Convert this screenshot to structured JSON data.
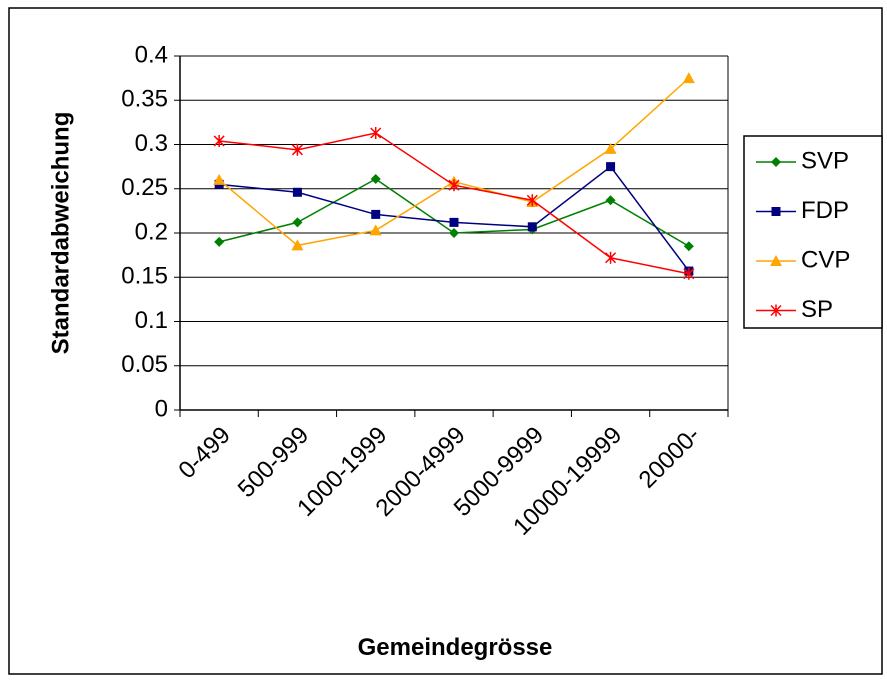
{
  "chart_data": {
    "type": "line",
    "x_label": "Gemeindegrösse",
    "y_label": "Standardabweichung",
    "categories": [
      "0-499",
      "500-999",
      "1000-1999",
      "2000-4999",
      "5000-9999",
      "10000-19999",
      "20000-"
    ],
    "series": [
      {
        "name": "SVP",
        "color": "#008000",
        "marker": "diamond",
        "values": [
          0.19,
          0.212,
          0.261,
          0.2,
          0.204,
          0.237,
          0.185
        ]
      },
      {
        "name": "FDP",
        "color": "#000080",
        "marker": "square",
        "values": [
          0.255,
          0.246,
          0.221,
          0.212,
          0.207,
          0.275,
          0.157
        ]
      },
      {
        "name": "CVP",
        "color": "#FFA500",
        "marker": "triangle",
        "values": [
          0.26,
          0.186,
          0.203,
          0.258,
          0.235,
          0.295,
          0.375
        ]
      },
      {
        "name": "SP",
        "color": "#FF0000",
        "marker": "star",
        "values": [
          0.304,
          0.294,
          0.313,
          0.254,
          0.237,
          0.172,
          0.154
        ]
      }
    ],
    "ylim": [
      0,
      0.4
    ],
    "yticks": [
      0,
      0.05,
      0.1,
      0.15,
      0.2,
      0.25,
      0.3,
      0.35,
      0.4
    ],
    "grid": true,
    "legend": "right"
  }
}
